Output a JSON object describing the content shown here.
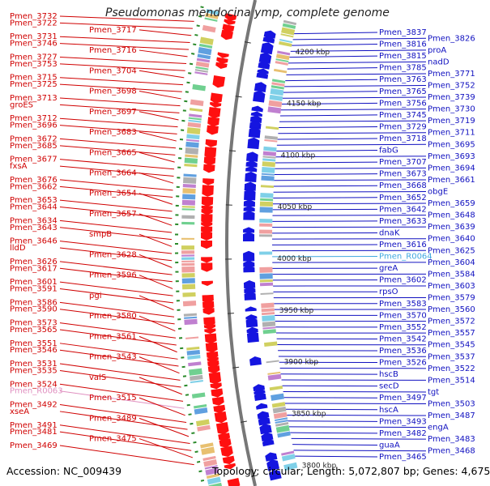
{
  "title": "Pseudomonas mendocina ymp, complete genome",
  "accession": "Accession: NC_009439",
  "summary": "Topology: circular; Length: 5,072,807 bp; Genes: 4,675",
  "colors": {
    "left_label": "#d00000",
    "right_label": "#1010c0",
    "rna_left": "#e090c0",
    "rna_right": "#40a8e0",
    "forward_arrow": "#ff1010",
    "reverse_arrow": "#1515e0",
    "backbone": "#777777",
    "tick": "#2a8a2a"
  },
  "ticks": [
    "4200 kbp",
    "4150 kbp",
    "4100 kbp",
    "4050 kbp",
    "4000 kbp",
    "3950 kbp",
    "3900 kbp",
    "3850 kbp",
    "3800 kbp"
  ],
  "left_labels": [
    "Pmen_3732",
    "Pmen_3722",
    "Pmen_3717",
    "Pmen_3731",
    "Pmen_3746",
    "Pmen_3716",
    "Pmen_3727",
    "Pmen_3753",
    "Pmen_3704",
    "Pmen_3715",
    "Pmen_3725",
    "Pmen_3698",
    "Pmen_3713",
    "groES",
    "Pmen_3697",
    "Pmen_3712",
    "Pmen_3696",
    "Pmen_3683",
    "Pmen_3672",
    "Pmen_3685",
    "Pmen_3665",
    "Pmen_3677",
    "fxsA",
    "Pmen_3664",
    "Pmen_3676",
    "Pmen_3662",
    "Pmen_3654",
    "Pmen_3653",
    "Pmen_3644",
    "Pmen_3657",
    "Pmen_3634",
    "Pmen_3643",
    "smpB",
    "Pmen_3646",
    "lldD",
    "Pmen_3628",
    "Pmen_3626",
    "Pmen_3617",
    "Pmen_3596",
    "Pmen_3601",
    "Pmen_3591",
    "pgi",
    "Pmen_3586",
    "Pmen_3590",
    "Pmen_3580",
    "Pmen_3573",
    "Pmen_3565",
    "Pmen_3561",
    "Pmen_3551",
    "Pmen_3546",
    "Pmen_3543",
    "Pmen_3531",
    "Pmen_3535",
    "valS",
    "Pmen_3524",
    "Pmen_R0063",
    "Pmen_3515",
    "Pmen_3492",
    "xseA",
    "Pmen_3489",
    "Pmen_3491",
    "Pmen_3481",
    "Pmen_3475",
    "Pmen_3469"
  ],
  "right_labels": [
    "Pmen_3837",
    "Pmen_3826",
    "Pmen_3816",
    "proA",
    "Pmen_3815",
    "nadD",
    "Pmen_3785",
    "Pmen_3771",
    "Pmen_3763",
    "Pmen_3752",
    "Pmen_3765",
    "Pmen_3739",
    "Pmen_3756",
    "Pmen_3730",
    "Pmen_3745",
    "Pmen_3719",
    "Pmen_3729",
    "Pmen_3711",
    "Pmen_3718",
    "Pmen_3695",
    "fabG",
    "Pmen_3693",
    "Pmen_3707",
    "Pmen_3694",
    "Pmen_3673",
    "Pmen_3661",
    "Pmen_3668",
    "obgE",
    "Pmen_3652",
    "Pmen_3659",
    "Pmen_3642",
    "Pmen_3648",
    "Pmen_3633",
    "Pmen_3639",
    "dnaK",
    "Pmen_3640",
    "Pmen_3616",
    "Pmen_3625",
    "Pmen_R0064",
    "Pmen_3604",
    "greA",
    "Pmen_3584",
    "Pmen_3602",
    "Pmen_3603",
    "rpsO",
    "Pmen_3579",
    "Pmen_3583",
    "Pmen_3560",
    "Pmen_3570",
    "Pmen_3572",
    "Pmen_3552",
    "Pmen_3557",
    "Pmen_3542",
    "Pmen_3545",
    "Pmen_3536",
    "Pmen_3537",
    "Pmen_3526",
    "Pmen_3522",
    "hscB",
    "Pmen_3514",
    "secD",
    "tgt",
    "Pmen_3497",
    "Pmen_3503",
    "hscA",
    "Pmen_3487",
    "Pmen_3493",
    "engA",
    "Pmen_3482",
    "Pmen_3483",
    "guaA",
    "Pmen_3468",
    "Pmen_3465"
  ]
}
